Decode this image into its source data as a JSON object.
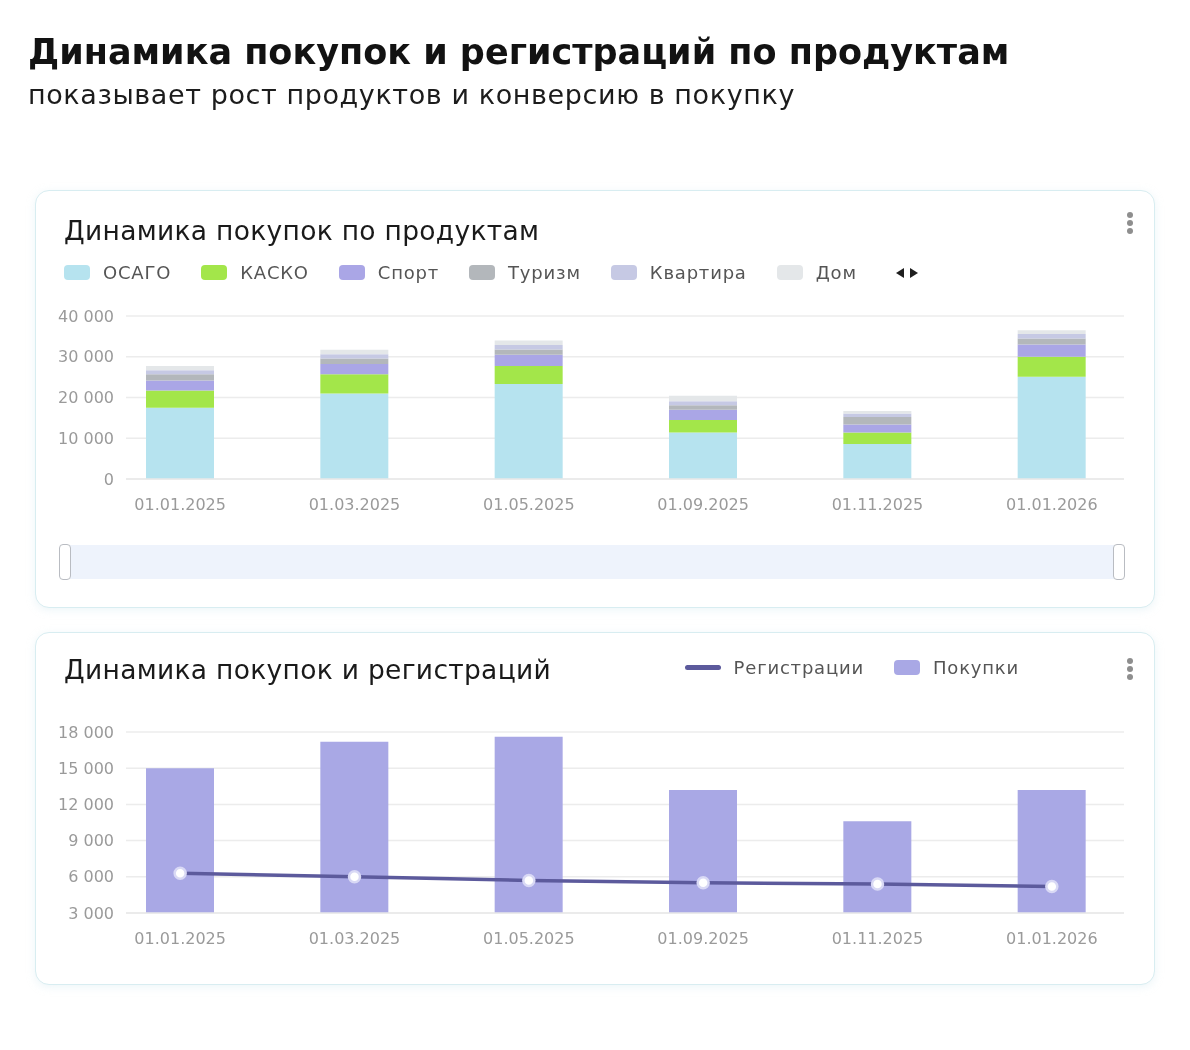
{
  "chart_data": [
    {
      "type": "other",
      "title": "Динамика покупок и регистраций по продуктам",
      "subtitle": "показывает рост продуктов и конверсию в покупку"
    },
    {
      "type": "bar",
      "title": "Динамика покупок по продуктам",
      "stacked": true,
      "categories": [
        "01.01.2025",
        "01.03.2025",
        "01.05.2025",
        "01.09.2025",
        "01.11.2025",
        "01.01.2026"
      ],
      "series": [
        {
          "name": "ОСАГО",
          "color": "#b6e3ef",
          "values": [
            17500,
            21000,
            23300,
            11400,
            8600,
            25100
          ]
        },
        {
          "name": "КАСКО",
          "color": "#a3e64a",
          "values": [
            4200,
            4700,
            4400,
            3100,
            2800,
            4900
          ]
        },
        {
          "name": "Спорт",
          "color": "#aaa6e6",
          "values": [
            2500,
            2500,
            2800,
            2500,
            2000,
            3000
          ]
        },
        {
          "name": "Туризм",
          "color": "#b3b7bb",
          "values": [
            1500,
            1400,
            1300,
            1100,
            1800,
            1500
          ]
        },
        {
          "name": "Квартира",
          "color": "#c6c9e4",
          "values": [
            1000,
            1000,
            1100,
            1000,
            900,
            1100
          ]
        },
        {
          "name": "Дом",
          "color": "#e4e7e9",
          "values": [
            1000,
            1100,
            1100,
            1300,
            600,
            900
          ]
        }
      ],
      "ylim": [
        0,
        40000
      ],
      "yticks": [
        0,
        {
          "value": 10000,
          "label": "10 000"
        },
        {
          "value": 20000,
          "label": "20 000"
        },
        {
          "value": 30000,
          "label": "30 000"
        },
        {
          "value": 40000,
          "label": "40 000"
        }
      ],
      "grid": "y",
      "legend": "top left"
    },
    {
      "type": "bar",
      "title": "Динамика покупок и регистраций",
      "categories": [
        "01.01.2025",
        "01.03.2025",
        "01.05.2025",
        "01.09.2025",
        "01.11.2025",
        "01.01.2026"
      ],
      "series": [
        {
          "name": "Регистрации",
          "type": "line",
          "color": "#5c5a9c",
          "values": [
            6300,
            6000,
            5700,
            5500,
            5400,
            5200
          ]
        },
        {
          "name": "Покупки",
          "type": "bar",
          "color": "#a9a8e5",
          "values": [
            15000,
            17200,
            17600,
            13200,
            10600,
            13200
          ]
        }
      ],
      "ylim": [
        3000,
        18000
      ],
      "yticks": [
        {
          "value": 3000,
          "label": "3 000"
        },
        {
          "value": 6000,
          "label": "6 000"
        },
        {
          "value": 9000,
          "label": "9 000"
        },
        {
          "value": 12000,
          "label": "12 000"
        },
        {
          "value": 15000,
          "label": "15 000"
        },
        {
          "value": 18000,
          "label": "18 000"
        }
      ],
      "grid": "y",
      "legend": "top right",
      "marker": "circle"
    }
  ]
}
